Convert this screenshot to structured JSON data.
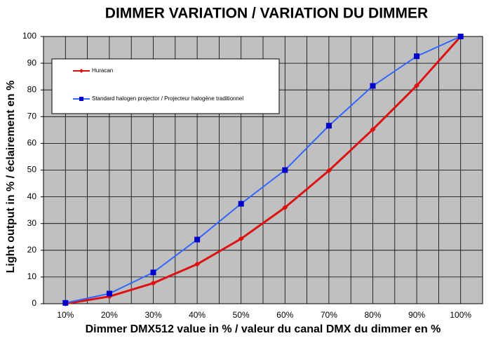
{
  "chart_data": {
    "type": "line",
    "title": "DIMMER VARIATION / VARIATION DU DIMMER",
    "x_label": "Dimmer DMX512 value in % / valeur du canal DMX du dimmer en %",
    "y_label": "Light output in % / éclairement en %",
    "categories": [
      "10%",
      "20%",
      "30%",
      "40%",
      "50%",
      "60%",
      "70%",
      "80%",
      "90%",
      "100%"
    ],
    "series": [
      {
        "name": "Huracan",
        "color": "#dd1111",
        "marker": "diamond",
        "values": [
          0,
          2.7,
          7.7,
          14.8,
          24.3,
          36,
          49.8,
          65.2,
          81.6,
          100
        ]
      },
      {
        "name": "Standard halogen projector / Projecteur halogène traditionnel",
        "color": "#3366ff",
        "marker": "square",
        "values": [
          0.3,
          3.8,
          11.7,
          24,
          37.4,
          50,
          66.6,
          81.5,
          92.6,
          100
        ]
      }
    ],
    "ylim": [
      0,
      100
    ],
    "yticks": [
      0,
      10,
      20,
      30,
      40,
      50,
      60,
      70,
      80,
      90,
      100
    ],
    "grid": true,
    "legend": "top-left"
  }
}
